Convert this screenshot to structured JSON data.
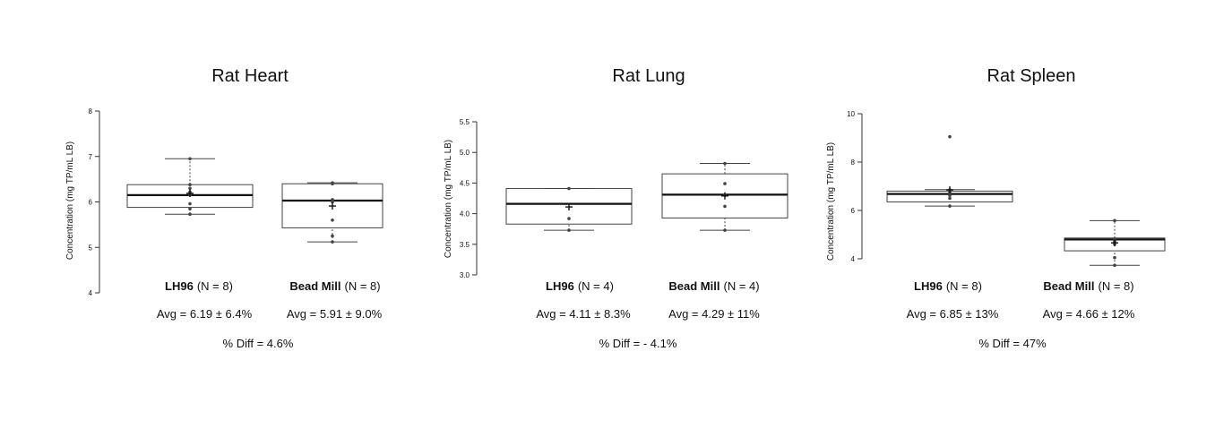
{
  "chart_data": [
    {
      "type": "box",
      "title": "Rat Heart",
      "ylabel": "Concentration (mg TP/mL LB)",
      "ylim": [
        4,
        8
      ],
      "yticks": [
        "4",
        "5",
        "6",
        "7",
        "8"
      ],
      "ytick_values": [
        4,
        5,
        6,
        7,
        8
      ],
      "groups": [
        {
          "name": "LH96",
          "n_text": "(N = 8)",
          "whisker_low": 5.73,
          "q1": 5.88,
          "median": 6.15,
          "q3": 6.38,
          "whisker_high": 6.95,
          "mean": 6.19,
          "points": [
            5.73,
            5.85,
            5.96,
            6.15,
            6.22,
            6.3,
            6.38,
            6.95
          ],
          "avg_text": "Avg = 6.19 ± 6.4%"
        },
        {
          "name": "Bead Mill",
          "n_text": "(N = 8)",
          "whisker_low": 5.12,
          "q1": 5.43,
          "median": 6.03,
          "q3": 6.4,
          "whisker_high": 6.42,
          "mean": 5.91,
          "points": [
            5.12,
            5.25,
            5.6,
            6.0,
            6.05,
            6.4,
            6.42
          ],
          "avg_text": "Avg = 5.91 ± 9.0%"
        }
      ],
      "diff_text": "% Diff = 4.6%"
    },
    {
      "type": "box",
      "title": "Rat Lung",
      "ylabel": "Concentration (mg TP/mL LB)",
      "ylim": [
        3.0,
        5.5
      ],
      "yticks": [
        "3.0",
        "3.5",
        "4.0",
        "4.5",
        "5.0",
        "5.5"
      ],
      "ytick_values": [
        3.0,
        3.5,
        4.0,
        4.5,
        5.0,
        5.5
      ],
      "groups": [
        {
          "name": "LH96",
          "n_text": "(N = 4)",
          "whisker_low": 3.73,
          "q1": 3.83,
          "median": 4.16,
          "q3": 4.41,
          "whisker_high": 4.41,
          "mean": 4.11,
          "points": [
            3.73,
            3.92,
            4.41
          ],
          "avg_text": "Avg = 4.11 ± 8.3%"
        },
        {
          "name": "Bead Mill",
          "n_text": "(N = 4)",
          "whisker_low": 3.73,
          "q1": 3.93,
          "median": 4.31,
          "q3": 4.65,
          "whisker_high": 4.82,
          "mean": 4.29,
          "points": [
            3.73,
            4.12,
            4.3,
            4.49,
            4.82
          ],
          "avg_text": "Avg = 4.29 ± 11%"
        }
      ],
      "diff_text": "% Diff = - 4.1%"
    },
    {
      "type": "box",
      "title": "Rat Spleen",
      "ylabel": "Concentration (mg TP/mL LB)",
      "ylim": [
        4,
        10
      ],
      "yticks": [
        "4",
        "6",
        "8",
        "10"
      ],
      "ytick_values": [
        4,
        6,
        8,
        10
      ],
      "groups": [
        {
          "name": "LH96",
          "n_text": "(N = 8)",
          "whisker_low": 6.18,
          "q1": 6.35,
          "median": 6.68,
          "q3": 6.8,
          "whisker_high": 6.86,
          "mean": 6.85,
          "points": [
            6.18,
            6.5,
            6.62,
            6.7,
            6.78,
            6.85,
            9.05
          ],
          "avg_text": "Avg = 6.85 ± 13%"
        },
        {
          "name": "Bead Mill",
          "n_text": "(N = 8)",
          "whisker_low": 3.73,
          "q1": 4.33,
          "median": 4.8,
          "q3": 4.86,
          "whisker_high": 5.58,
          "mean": 4.66,
          "points": [
            3.73,
            4.05,
            4.6,
            4.72,
            4.82,
            5.58
          ],
          "avg_text": "Avg = 4.66 ± 12%"
        }
      ],
      "diff_text": "% Diff = 47%"
    }
  ]
}
